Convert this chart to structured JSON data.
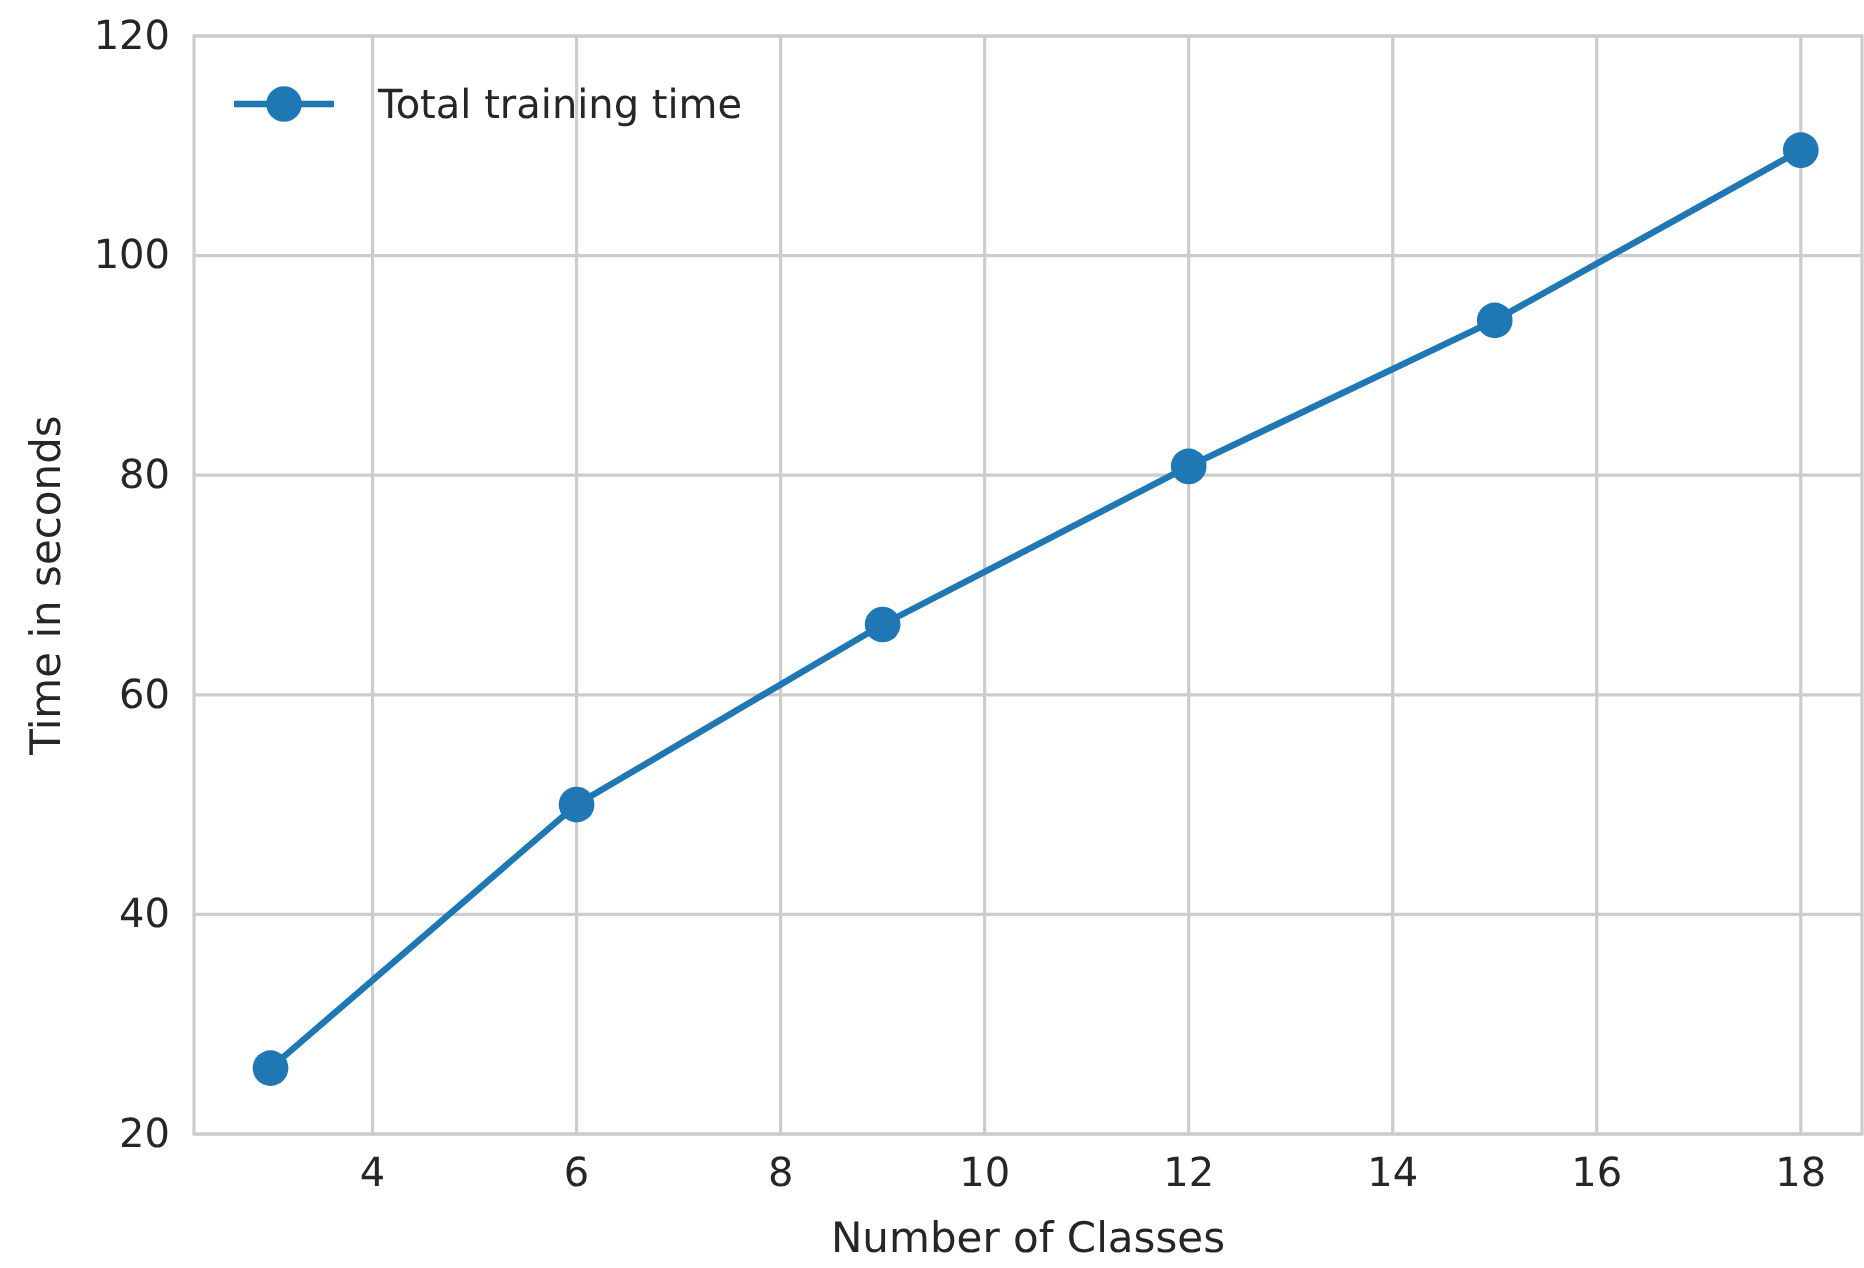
{
  "chart_data": {
    "type": "line",
    "xlabel": "Number of Classes",
    "ylabel": "Time in seconds",
    "x": [
      3,
      6,
      9,
      12,
      15,
      18
    ],
    "series": [
      {
        "name": "Total training time",
        "color": "#1f77b4",
        "values": [
          26,
          50,
          66.4,
          80.8,
          94.1,
          109.6
        ]
      }
    ],
    "xlim": [
      2.25,
      18.6
    ],
    "xticks": [
      4,
      6,
      8,
      10,
      12,
      14,
      16,
      18
    ],
    "ylim": [
      20,
      120
    ],
    "yticks": [
      20,
      40,
      60,
      80,
      100,
      120
    ],
    "grid": true,
    "legend": "top left",
    "marker": "circle",
    "line_style": "solid"
  }
}
